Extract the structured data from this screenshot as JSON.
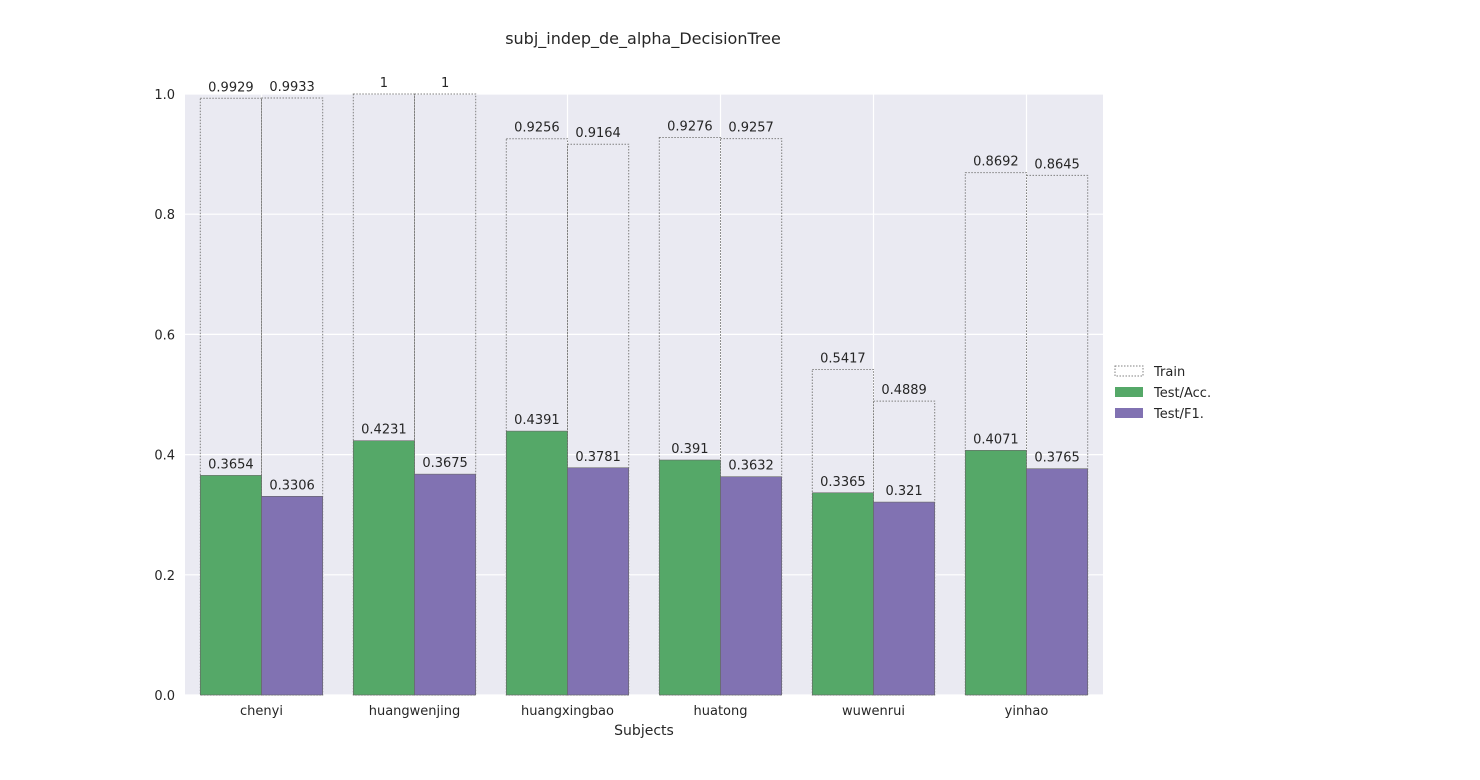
{
  "chart_data": {
    "type": "bar",
    "title": "subj_indep_de_alpha_DecisionTree",
    "xlabel": "Subjects",
    "ylabel": "",
    "ylim": [
      0,
      1.0
    ],
    "yticks": [
      "0.0",
      "0.2",
      "0.4",
      "0.6",
      "0.8",
      "1.0"
    ],
    "grid": true,
    "legend_position": "right",
    "categories": [
      "chenyi",
      "huangwenjing",
      "huangxingbao",
      "huatong",
      "wuwenrui",
      "yinhao"
    ],
    "series": [
      {
        "name": "Train",
        "style": "outline-dotted",
        "color": "#808080",
        "values": [
          0.9929,
          1,
          0.9256,
          0.9276,
          0.5417,
          0.8692
        ],
        "labels": [
          "0.9929",
          "1",
          "0.9256",
          "0.9276",
          "0.5417",
          "0.8692"
        ],
        "values_f1": [
          0.9933,
          1,
          0.9164,
          0.9257,
          0.4889,
          0.8645
        ],
        "labels_f1": [
          "0.9933",
          "1",
          "0.9164",
          "0.9257",
          "0.4889",
          "0.8645"
        ]
      },
      {
        "name": "Test/Acc.",
        "color": "#55a868",
        "values": [
          0.3654,
          0.4231,
          0.4391,
          0.391,
          0.3365,
          0.4071
        ],
        "labels": [
          "0.3654",
          "0.4231",
          "0.4391",
          "0.391",
          "0.3365",
          "0.4071"
        ]
      },
      {
        "name": "Test/F1.",
        "color": "#8172b2",
        "values": [
          0.3306,
          0.3675,
          0.3781,
          0.3632,
          0.321,
          0.3765
        ],
        "labels": [
          "0.3306",
          "0.3675",
          "0.3781",
          "0.3632",
          "0.321",
          "0.3765"
        ]
      }
    ],
    "colors": {
      "background": "#eaeaf2",
      "grid": "#ffffff"
    }
  }
}
